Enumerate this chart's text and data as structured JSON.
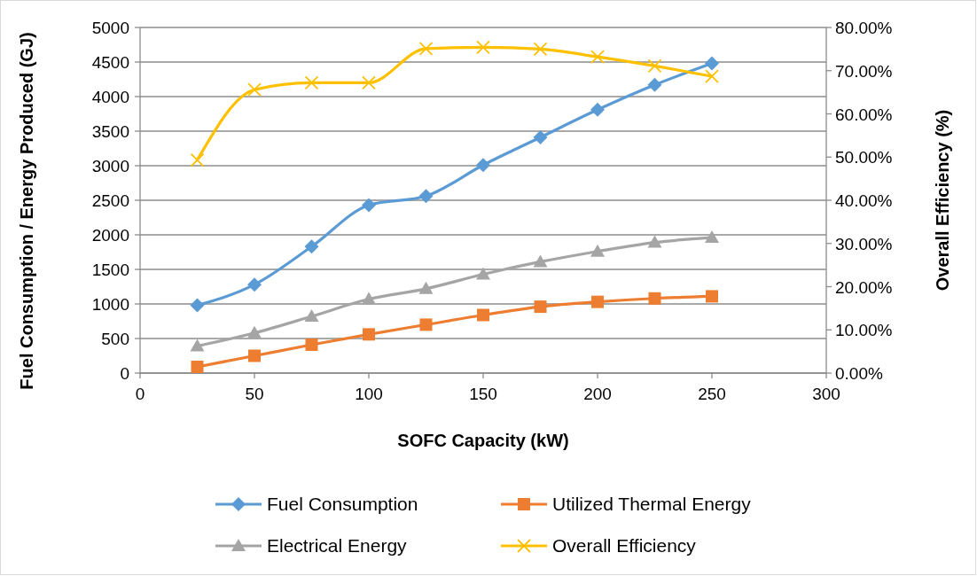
{
  "chart_data": {
    "type": "line",
    "xlabel": "SOFC Capacity (kW)",
    "ylabel": "Fuel Consumption / Energy Produced (GJ)",
    "y2label": "Overall Efficiency (%)",
    "x": [
      25,
      50,
      75,
      100,
      125,
      150,
      175,
      200,
      225,
      250
    ],
    "xlim": [
      0,
      300
    ],
    "xticks": [
      0,
      50,
      100,
      150,
      200,
      250,
      300
    ],
    "ylim": [
      0,
      5000
    ],
    "yticks": [
      0,
      500,
      1000,
      1500,
      2000,
      2500,
      3000,
      3500,
      4000,
      4500,
      5000
    ],
    "y2lim": [
      0,
      80
    ],
    "y2ticks": [
      {
        "value": 0,
        "label": "0.00%"
      },
      {
        "value": 10,
        "label": "10.00%"
      },
      {
        "value": 20,
        "label": "20.00%"
      },
      {
        "value": 30,
        "label": "30.00%"
      },
      {
        "value": 40,
        "label": "40.00%"
      },
      {
        "value": 50,
        "label": "50.00%"
      },
      {
        "value": 60,
        "label": "60.00%"
      },
      {
        "value": 70,
        "label": "70.00%"
      },
      {
        "value": 80,
        "label": "80.00%"
      }
    ],
    "grid": "y",
    "legend": "bottom",
    "series": [
      {
        "name": "Fuel Consumption",
        "color": "#5b9bd5",
        "marker": "diamond",
        "values": [
          980,
          1280,
          1830,
          2430,
          2560,
          3010,
          3410,
          3810,
          4170,
          4480
        ]
      },
      {
        "name": "Utilized Thermal Energy",
        "color": "#ed7d31",
        "marker": "square",
        "values": [
          90,
          250,
          410,
          560,
          700,
          840,
          960,
          1030,
          1080,
          1110
        ]
      },
      {
        "name": "Electrical Energy",
        "color": "#a5a5a5",
        "marker": "triangle",
        "values": [
          390,
          580,
          820,
          1070,
          1220,
          1430,
          1610,
          1760,
          1890,
          1960
        ]
      },
      {
        "name": "Overall Efficiency",
        "color": "#ffc000",
        "marker": "cross",
        "axis": "y2",
        "values": [
          49.3,
          65.6,
          67.2,
          67.2,
          75.1,
          75.4,
          75.0,
          73.2,
          71.1,
          68.7
        ]
      }
    ]
  }
}
